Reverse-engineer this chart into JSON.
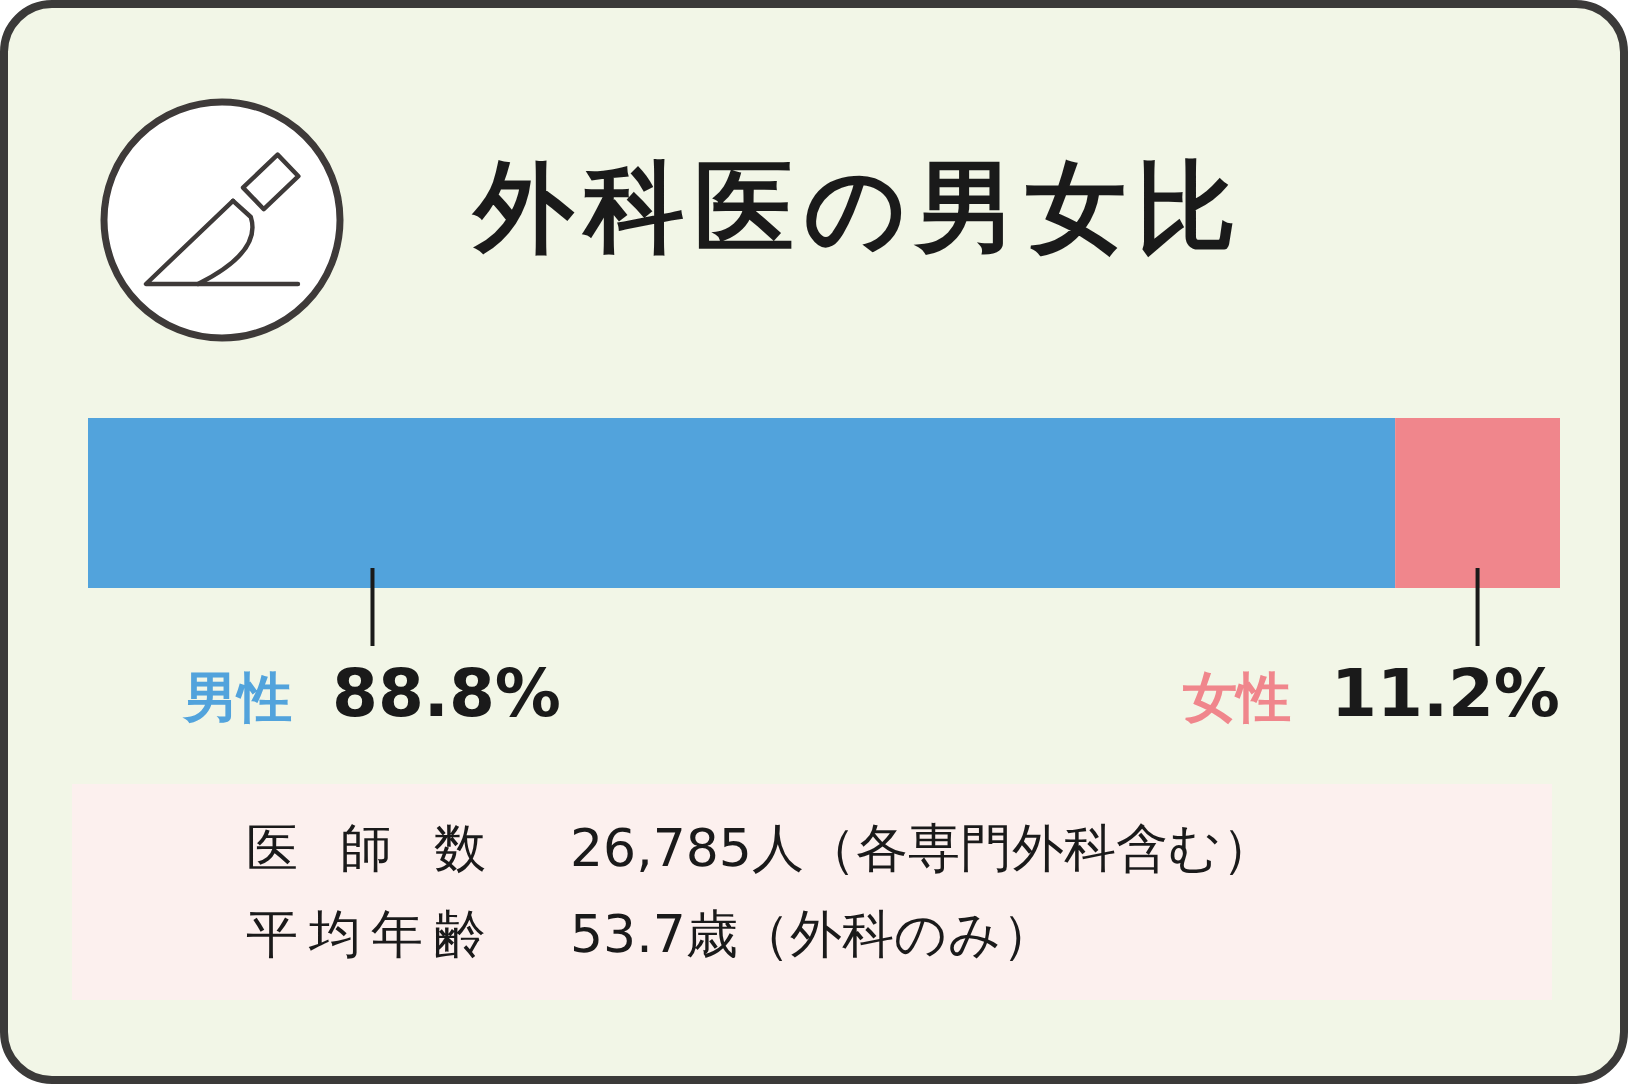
{
  "chart_data": {
    "type": "bar",
    "title": "外科医の男女比",
    "orientation": "horizontal",
    "stacked": true,
    "categories": [
      null
    ],
    "series": [
      {
        "name": "男性",
        "color": "#52a3dc",
        "values": [
          88.8
        ],
        "value_labels": [
          "88.8%"
        ]
      },
      {
        "name": "女性",
        "color": "#f0868c",
        "values": [
          11.2
        ],
        "value_labels": [
          "11.2%"
        ]
      }
    ],
    "annotations": [
      "医 師 数　26,785人（各専門外科含む）",
      "平均年齢　53.7歳（外科のみ）"
    ]
  }
}
